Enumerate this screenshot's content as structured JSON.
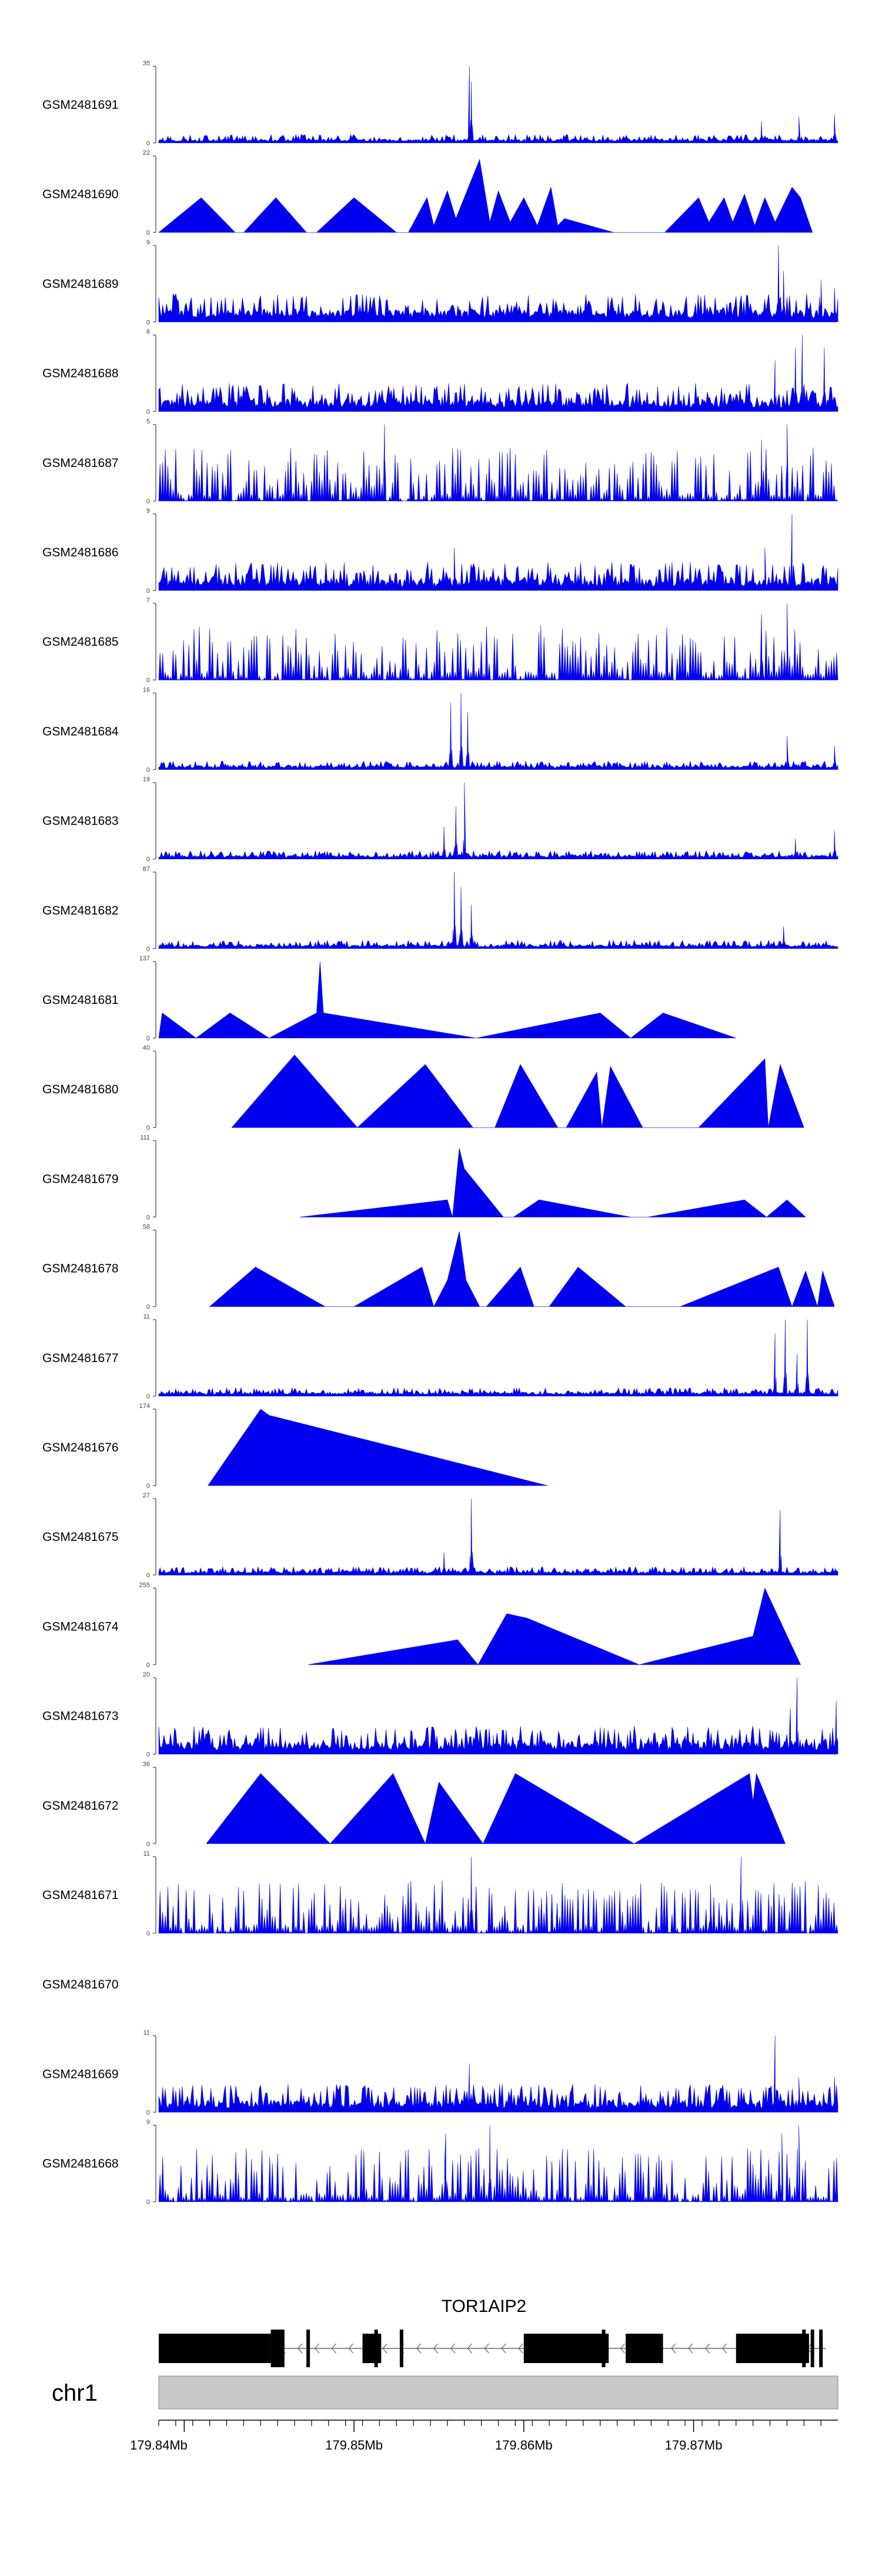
{
  "colors": {
    "signal": "#0000ee",
    "gene": "#000000",
    "chromosome_band": "#c8c8c8",
    "axis": "#000000"
  },
  "chart_data": {
    "type": "area",
    "x_range": [
      179838500,
      179878500
    ],
    "tracks": [
      {
        "sample": "GSM2481691",
        "ymax": 35,
        "ylabels": [
          "35",
          "0"
        ],
        "profile": "mostly_low_peak",
        "peaks": [
          {
            "x": 179856800,
            "y": 35
          },
          {
            "x": 179856900,
            "y": 28
          },
          {
            "x": 179874000,
            "y": 10
          },
          {
            "x": 179876200,
            "y": 12
          },
          {
            "x": 179878300,
            "y": 13
          }
        ]
      },
      {
        "sample": "GSM2481690",
        "ymax": 22,
        "ylabels": [
          "22",
          "0"
        ],
        "profile": "triangles",
        "segments": [
          [
            179838500,
            0
          ],
          [
            179841000,
            10
          ],
          [
            179843000,
            0
          ],
          [
            179843500,
            0
          ],
          [
            179845400,
            10
          ],
          [
            179847200,
            0
          ],
          [
            179847800,
            0
          ],
          [
            179850000,
            10
          ],
          [
            179852500,
            0
          ],
          [
            179853200,
            0
          ],
          [
            179854300,
            10
          ],
          [
            179854700,
            2
          ],
          [
            179855500,
            12
          ],
          [
            179856000,
            4
          ],
          [
            179857400,
            21
          ],
          [
            179858000,
            3
          ],
          [
            179858500,
            12
          ],
          [
            179859200,
            3
          ],
          [
            179860000,
            10
          ],
          [
            179860800,
            2
          ],
          [
            179861600,
            13
          ],
          [
            179862000,
            2
          ],
          [
            179862400,
            4
          ],
          [
            179865300,
            0
          ],
          [
            179868300,
            0
          ],
          [
            179870300,
            10
          ],
          [
            179870900,
            3
          ],
          [
            179871800,
            10
          ],
          [
            179872300,
            3
          ],
          [
            179873000,
            11
          ],
          [
            179873600,
            2
          ],
          [
            179874200,
            10
          ],
          [
            179874800,
            3
          ],
          [
            179875800,
            13
          ],
          [
            179876300,
            10
          ],
          [
            179877000,
            0
          ]
        ]
      },
      {
        "sample": "GSM2481689",
        "ymax": 9,
        "ylabels": [
          "9",
          "0"
        ],
        "profile": "spiky",
        "peaks": [
          {
            "x": 179875000,
            "y": 9
          },
          {
            "x": 179875300,
            "y": 6
          },
          {
            "x": 179877500,
            "y": 5
          },
          {
            "x": 179878300,
            "y": 4
          }
        ]
      },
      {
        "sample": "GSM2481688",
        "ymax": 6,
        "ylabels": [
          "6",
          "0"
        ],
        "profile": "spiky",
        "peaks": [
          {
            "x": 179876400,
            "y": 6
          },
          {
            "x": 179876000,
            "y": 5
          },
          {
            "x": 179877700,
            "y": 5
          },
          {
            "x": 179874800,
            "y": 4
          }
        ]
      },
      {
        "sample": "GSM2481687",
        "ymax": 5,
        "ylabels": [
          "5",
          "0"
        ],
        "profile": "dense_spikes",
        "peaks": [
          {
            "x": 179851800,
            "y": 5
          },
          {
            "x": 179875500,
            "y": 5
          },
          {
            "x": 179874000,
            "y": 4
          }
        ]
      },
      {
        "sample": "GSM2481686",
        "ymax": 9,
        "ylabels": [
          "9",
          "0"
        ],
        "profile": "spiky",
        "peaks": [
          {
            "x": 179875800,
            "y": 9
          },
          {
            "x": 179855900,
            "y": 5
          },
          {
            "x": 179874200,
            "y": 5
          }
        ]
      },
      {
        "sample": "GSM2481685",
        "ymax": 7,
        "ylabels": [
          "7",
          "0"
        ],
        "profile": "dense_spikes",
        "peaks": [
          {
            "x": 179875500,
            "y": 7
          },
          {
            "x": 179874000,
            "y": 6
          },
          {
            "x": 179861000,
            "y": 5
          }
        ]
      },
      {
        "sample": "GSM2481684",
        "ymax": 16,
        "ylabels": [
          "16",
          "0"
        ],
        "profile": "mostly_low_peak",
        "peaks": [
          {
            "x": 179855700,
            "y": 14
          },
          {
            "x": 179856300,
            "y": 16
          },
          {
            "x": 179856700,
            "y": 12
          },
          {
            "x": 179875500,
            "y": 7
          },
          {
            "x": 179878300,
            "y": 5
          }
        ]
      },
      {
        "sample": "GSM2481683",
        "ymax": 19,
        "ylabels": [
          "19",
          "0"
        ],
        "profile": "mostly_low_peak",
        "peaks": [
          {
            "x": 179856500,
            "y": 19
          },
          {
            "x": 179856000,
            "y": 13
          },
          {
            "x": 179855300,
            "y": 8
          },
          {
            "x": 179876000,
            "y": 5
          },
          {
            "x": 179878300,
            "y": 7
          }
        ]
      },
      {
        "sample": "GSM2481682",
        "ymax": 87,
        "ylabels": [
          "87",
          "0"
        ],
        "profile": "mostly_low_peak",
        "peaks": [
          {
            "x": 179855900,
            "y": 87
          },
          {
            "x": 179856300,
            "y": 70
          },
          {
            "x": 179856900,
            "y": 50
          },
          {
            "x": 179875300,
            "y": 25
          }
        ]
      },
      {
        "sample": "GSM2481681",
        "ymax": 137,
        "ylabels": [
          "137",
          "0"
        ],
        "profile": "triangles",
        "segments": [
          [
            179838500,
            0
          ],
          [
            179838700,
            45
          ],
          [
            179840700,
            0
          ],
          [
            179842700,
            45
          ],
          [
            179845000,
            0
          ],
          [
            179847800,
            45
          ],
          [
            179848000,
            137
          ],
          [
            179848200,
            45
          ],
          [
            179857200,
            0
          ],
          [
            179864500,
            45
          ],
          [
            179866300,
            0
          ],
          [
            179868200,
            45
          ],
          [
            179872500,
            0
          ]
        ]
      },
      {
        "sample": "GSM2481680",
        "ymax": 40,
        "ylabels": [
          "40",
          "0"
        ],
        "profile": "triangles",
        "segments": [
          [
            179842800,
            0
          ],
          [
            179846500,
            38
          ],
          [
            179850200,
            0
          ],
          [
            179854200,
            33
          ],
          [
            179857000,
            0
          ],
          [
            179858300,
            0
          ],
          [
            179859800,
            33
          ],
          [
            179862000,
            0
          ],
          [
            179862500,
            0
          ],
          [
            179864300,
            29
          ],
          [
            179864600,
            0
          ],
          [
            179865100,
            32
          ],
          [
            179867000,
            0
          ],
          [
            179870300,
            0
          ],
          [
            179874200,
            36
          ],
          [
            179874400,
            0
          ],
          [
            179875100,
            33
          ],
          [
            179876500,
            0
          ]
        ]
      },
      {
        "sample": "GSM2481679",
        "ymax": 111,
        "ylabels": [
          "111",
          "0"
        ],
        "profile": "triangles",
        "segments": [
          [
            179846800,
            0
          ],
          [
            179855500,
            25
          ],
          [
            179855800,
            0
          ],
          [
            179856200,
            100
          ],
          [
            179856500,
            70
          ],
          [
            179858800,
            0
          ],
          [
            179859400,
            0
          ],
          [
            179860900,
            25
          ],
          [
            179866300,
            0
          ],
          [
            179867300,
            0
          ],
          [
            179873000,
            25
          ],
          [
            179874300,
            0
          ],
          [
            179875500,
            25
          ],
          [
            179876600,
            0
          ]
        ]
      },
      {
        "sample": "GSM2481678",
        "ymax": 58,
        "ylabels": [
          "58",
          "0"
        ],
        "profile": "triangles",
        "segments": [
          [
            179841500,
            0
          ],
          [
            179844200,
            30
          ],
          [
            179848300,
            0
          ],
          [
            179850000,
            0
          ],
          [
            179854000,
            30
          ],
          [
            179854700,
            0
          ],
          [
            179855500,
            20
          ],
          [
            179856200,
            57
          ],
          [
            179856600,
            20
          ],
          [
            179857400,
            0
          ],
          [
            179857800,
            0
          ],
          [
            179859800,
            30
          ],
          [
            179860600,
            0
          ],
          [
            179861200,
            0
          ],
          [
            179861500,
            0
          ],
          [
            179863200,
            30
          ],
          [
            179866000,
            0
          ],
          [
            179869200,
            0
          ],
          [
            179875000,
            30
          ],
          [
            179875800,
            0
          ],
          [
            179876600,
            27
          ],
          [
            179877300,
            0
          ],
          [
            179877600,
            27
          ],
          [
            179878300,
            0
          ]
        ]
      },
      {
        "sample": "GSM2481677",
        "ymax": 11,
        "ylabels": [
          "11",
          "0"
        ],
        "profile": "mostly_low_peak",
        "peaks": [
          {
            "x": 179875400,
            "y": 11
          },
          {
            "x": 179876700,
            "y": 11
          },
          {
            "x": 179874800,
            "y": 9
          },
          {
            "x": 179876100,
            "y": 6
          }
        ]
      },
      {
        "sample": "GSM2481676",
        "ymax": 174,
        "ylabels": [
          "174",
          "0"
        ],
        "profile": "triangles",
        "segments": [
          [
            179841400,
            0
          ],
          [
            179844500,
            174
          ],
          [
            179845000,
            160
          ],
          [
            179861400,
            0
          ]
        ]
      },
      {
        "sample": "GSM2481675",
        "ymax": 27,
        "ylabels": [
          "27",
          "0"
        ],
        "profile": "mostly_low_peak",
        "peaks": [
          {
            "x": 179856900,
            "y": 27
          },
          {
            "x": 179875100,
            "y": 23
          },
          {
            "x": 179855300,
            "y": 8
          }
        ]
      },
      {
        "sample": "GSM2481674",
        "ymax": 255,
        "ylabels": [
          "255",
          "0"
        ],
        "profile": "triangles",
        "segments": [
          [
            179847300,
            0
          ],
          [
            179856100,
            83
          ],
          [
            179857300,
            0
          ],
          [
            179859000,
            170
          ],
          [
            179860200,
            155
          ],
          [
            179866800,
            0
          ],
          [
            179873500,
            95
          ],
          [
            179874200,
            255
          ],
          [
            179876300,
            0
          ]
        ]
      },
      {
        "sample": "GSM2481673",
        "ymax": 20,
        "ylabels": [
          "20",
          "0"
        ],
        "profile": "spiky",
        "peaks": [
          {
            "x": 179876100,
            "y": 20
          },
          {
            "x": 179878400,
            "y": 14
          },
          {
            "x": 179875700,
            "y": 12
          },
          {
            "x": 179858200,
            "y": 5
          }
        ]
      },
      {
        "sample": "GSM2481672",
        "ymax": 36,
        "ylabels": [
          "36",
          "0"
        ],
        "profile": "triangles",
        "segments": [
          [
            179841300,
            0
          ],
          [
            179844500,
            33
          ],
          [
            179848600,
            0
          ],
          [
            179852300,
            33
          ],
          [
            179854200,
            0
          ],
          [
            179855000,
            29
          ],
          [
            179857600,
            0
          ],
          [
            179859500,
            33
          ],
          [
            179866500,
            0
          ],
          [
            179873300,
            33
          ],
          [
            179873500,
            20
          ],
          [
            179873700,
            33
          ],
          [
            179875400,
            0
          ]
        ]
      },
      {
        "sample": "GSM2481671",
        "ymax": 11,
        "ylabels": [
          "11",
          "0"
        ],
        "profile": "dense_spikes",
        "peaks": [
          {
            "x": 179856900,
            "y": 11
          },
          {
            "x": 179872800,
            "y": 11
          },
          {
            "x": 179871000,
            "y": 7
          }
        ]
      },
      {
        "sample": "GSM2481670",
        "ymax": null,
        "ylabels": [],
        "profile": "empty"
      },
      {
        "sample": "GSM2481669",
        "ymax": 11,
        "ylabels": [
          "11",
          "0"
        ],
        "profile": "spiky",
        "peaks": [
          {
            "x": 179874800,
            "y": 11
          },
          {
            "x": 179856800,
            "y": 7
          },
          {
            "x": 179876200,
            "y": 5
          },
          {
            "x": 179878300,
            "y": 5
          }
        ]
      },
      {
        "sample": "GSM2481668",
        "ymax": 9,
        "ylabels": [
          "9",
          "0"
        ],
        "profile": "dense_spikes",
        "peaks": [
          {
            "x": 179858000,
            "y": 9
          },
          {
            "x": 179876200,
            "y": 9
          },
          {
            "x": 179875200,
            "y": 8
          },
          {
            "x": 179855400,
            "y": 8
          }
        ]
      }
    ],
    "gene": {
      "name": "TOR1AIP2",
      "strand": "-",
      "exons": [
        [
          179838500,
          179845100
        ],
        [
          179860000,
          179865000
        ],
        [
          179866000,
          179868200
        ],
        [
          179872500,
          179876800
        ]
      ],
      "thin_blocks": [
        [
          179850500,
          179851600
        ]
      ],
      "markers": [
        179845800,
        179847300,
        179851300,
        179852800,
        179864700,
        179876500,
        179877000,
        179877500
      ],
      "span": [
        179838500,
        179877800
      ]
    },
    "chromosome": "chr1",
    "x_ticks": [
      179838500,
      179839500,
      179840500,
      179841500,
      179842500,
      179843500,
      179844500,
      179845500,
      179846500,
      179847500,
      179848500,
      179849500,
      179850500,
      179851500,
      179852500,
      179853500,
      179854500,
      179855500,
      179856500,
      179857500,
      179858500,
      179859500,
      179860500,
      179861500,
      179862500,
      179863500,
      179864500,
      179865500,
      179866500,
      179867500,
      179868500,
      179869500,
      179870500,
      179871500,
      179872500,
      179873500,
      179874500,
      179875500,
      179876500,
      179877500
    ],
    "x_tick_labels": [
      {
        "x": 179840000,
        "label": "179.84Mb"
      },
      {
        "x": 179850000,
        "label": "179.85Mb"
      },
      {
        "x": 179860000,
        "label": "179.86Mb"
      },
      {
        "x": 179870000,
        "label": "179.87Mb"
      }
    ]
  }
}
